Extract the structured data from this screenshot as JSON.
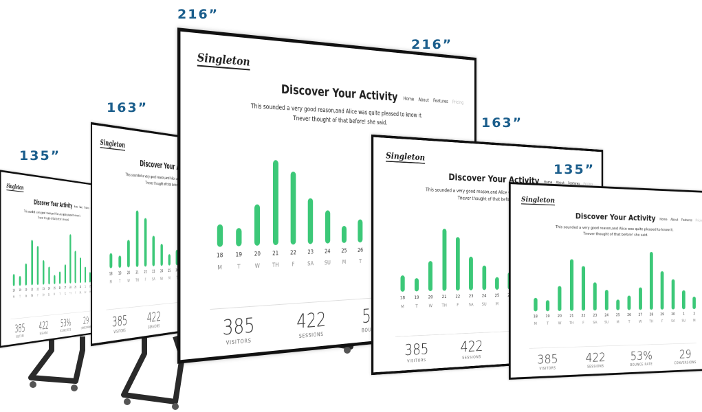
{
  "size_labels": [
    "216”",
    "163”",
    "135”"
  ],
  "dashboard": {
    "logo": "Singleton",
    "title": "Discover Your Activity",
    "nav": [
      "Home",
      "About",
      "Features",
      "Pricing"
    ],
    "text": [
      "This sounded a very good reason,and Alice was quite pleased to know it.",
      "Tnever thought of that before! she said."
    ],
    "chart": {
      "days": [
        "18",
        "19",
        "20",
        "21",
        "22",
        "23",
        "24",
        "25",
        "26",
        "27",
        "28",
        "29",
        "30",
        "1",
        "2"
      ],
      "weekdays": [
        "M",
        "T",
        "W",
        "TH",
        "F",
        "SA",
        "SU",
        "M",
        "T",
        "W",
        "TH",
        "F",
        "SA",
        "SU",
        "M"
      ],
      "values": [
        40,
        32,
        75,
        155,
        135,
        85,
        62,
        32,
        45,
        70,
        180,
        120,
        95,
        60,
        40
      ]
    },
    "stats": [
      {
        "value": "385",
        "label": "VISITORS"
      },
      {
        "value": "422",
        "label": "SESSIONS"
      },
      {
        "value": "53%",
        "label": "BOUNCE RATE"
      },
      {
        "value": "29",
        "label": "CONVERSIONS"
      }
    ]
  }
}
